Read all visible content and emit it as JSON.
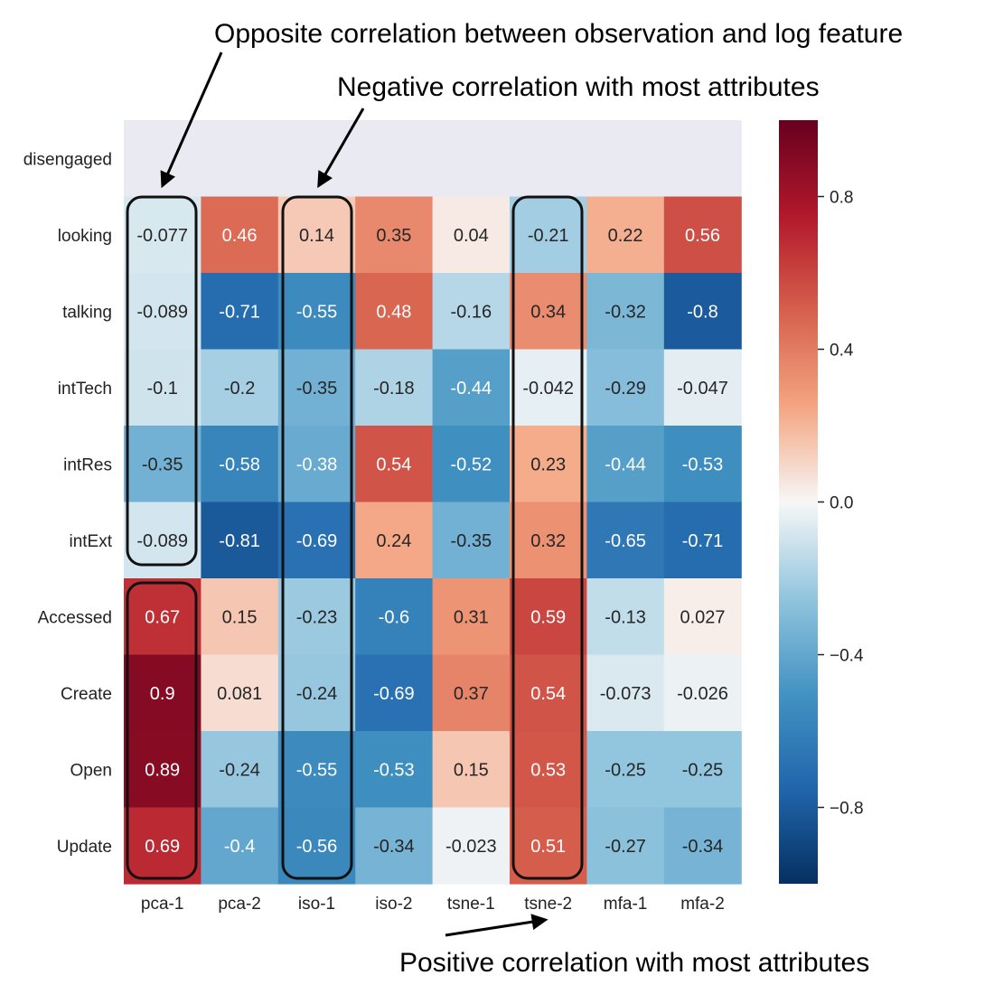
{
  "chart_data": {
    "type": "heatmap",
    "columns": [
      "pca-1",
      "pca-2",
      "iso-1",
      "iso-2",
      "tsne-1",
      "tsne-2",
      "mfa-1",
      "mfa-2"
    ],
    "rows": [
      "disengaged",
      "looking",
      "talking",
      "intTech",
      "intRes",
      "intExt",
      "Accessed",
      "Create",
      "Open",
      "Update"
    ],
    "values": [
      [
        null,
        null,
        null,
        null,
        null,
        null,
        null,
        null
      ],
      [
        -0.077,
        0.46,
        0.14,
        0.35,
        0.04,
        -0.21,
        0.22,
        0.56
      ],
      [
        -0.089,
        -0.71,
        -0.55,
        0.48,
        -0.16,
        0.34,
        -0.32,
        -0.8
      ],
      [
        -0.1,
        -0.2,
        -0.35,
        -0.18,
        -0.44,
        -0.042,
        -0.29,
        -0.047
      ],
      [
        -0.35,
        -0.58,
        -0.38,
        0.54,
        -0.52,
        0.23,
        -0.44,
        -0.53
      ],
      [
        -0.089,
        -0.81,
        -0.69,
        0.24,
        -0.35,
        0.32,
        -0.65,
        -0.71
      ],
      [
        0.67,
        0.15,
        -0.23,
        -0.6,
        0.31,
        0.59,
        -0.13,
        0.027
      ],
      [
        0.9,
        0.081,
        -0.24,
        -0.69,
        0.37,
        0.54,
        -0.073,
        -0.026
      ],
      [
        0.89,
        -0.24,
        -0.55,
        -0.53,
        0.15,
        0.53,
        -0.25,
        -0.25
      ],
      [
        0.69,
        -0.4,
        -0.56,
        -0.34,
        -0.023,
        0.51,
        -0.27,
        -0.34
      ]
    ],
    "colormap": "RdBu_r",
    "vmin": -1,
    "vmax": 1,
    "colorbar_ticks": [
      0.8,
      0.4,
      0.0,
      -0.4,
      -0.8
    ],
    "colorbar_tick_labels": [
      "0.8",
      "0.4",
      "0.0",
      "−0.4",
      "−0.8"
    ],
    "missing_color": "#eaeaf2",
    "annotations": [
      "Opposite correlation between observation and log feature",
      "Negative correlation with most attributes",
      "Positive correlation with most attributes"
    ]
  }
}
